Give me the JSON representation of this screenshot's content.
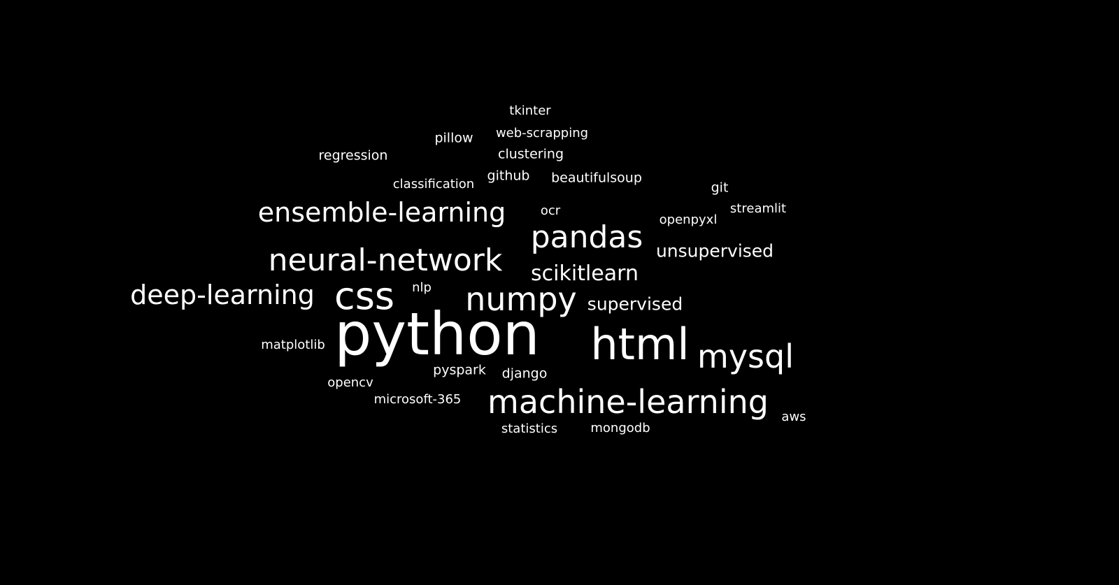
{
  "background_color": "#000000",
  "text_color": "#ffffff",
  "words": [
    {
      "text": "python"
    },
    {
      "text": "html"
    },
    {
      "text": "machine-learning"
    },
    {
      "text": "mysql"
    },
    {
      "text": "css"
    },
    {
      "text": "numpy"
    },
    {
      "text": "neural-network"
    },
    {
      "text": "pandas"
    },
    {
      "text": "deep-learning"
    },
    {
      "text": "ensemble-learning"
    },
    {
      "text": "scikitlearn"
    },
    {
      "text": "unsupervised"
    },
    {
      "text": "supervised"
    },
    {
      "text": "tkinter"
    },
    {
      "text": "web-scrapping"
    },
    {
      "text": "pillow"
    },
    {
      "text": "clustering"
    },
    {
      "text": "regression"
    },
    {
      "text": "github"
    },
    {
      "text": "beautifulsoup"
    },
    {
      "text": "classification"
    },
    {
      "text": "git"
    },
    {
      "text": "streamlit"
    },
    {
      "text": "ocr"
    },
    {
      "text": "openpyxl"
    },
    {
      "text": "nlp"
    },
    {
      "text": "matplotlib"
    },
    {
      "text": "pyspark"
    },
    {
      "text": "django"
    },
    {
      "text": "opencv"
    },
    {
      "text": "microsoft-365"
    },
    {
      "text": "aws"
    },
    {
      "text": "statistics"
    },
    {
      "text": "mongodb"
    }
  ]
}
